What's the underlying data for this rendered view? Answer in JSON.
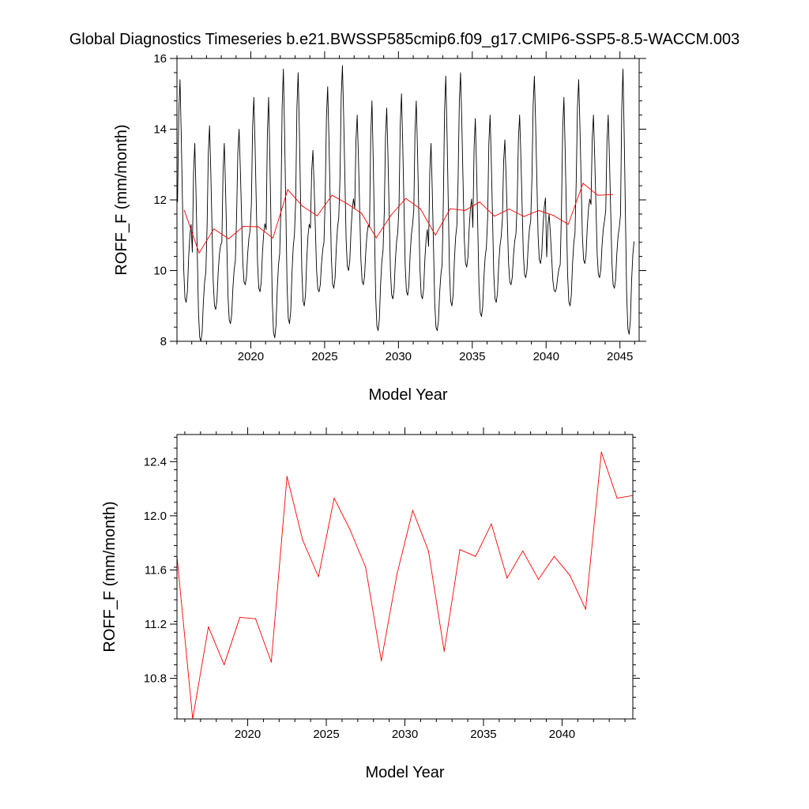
{
  "title": "Global Diagnostics Timeseries b.e21.BWSSP585cmip6.f09_g17.CMIP6-SSP5-8.5-WACCM.003",
  "chart_data": [
    {
      "type": "line",
      "xlabel": "Model Year",
      "ylabel": "ROFF_F (mm/month)",
      "xlim": [
        2015,
        2046.3
      ],
      "ylim": [
        8,
        16
      ],
      "xticks": [
        2020,
        2025,
        2030,
        2035,
        2040,
        2045
      ],
      "yticks": [
        8,
        10,
        12,
        14,
        16
      ],
      "grid": false,
      "series": [
        {
          "color": "#000000",
          "kind": "monthly",
          "x_start": 2015.04,
          "x_step": 0.08333,
          "annual_max": [
            15.4,
            13.6,
            14.1,
            13.6,
            14.0,
            14.9,
            14.9,
            15.7,
            15.6,
            13.4,
            15.2,
            15.8,
            14.4,
            14.8,
            14.6,
            15.0,
            14.8,
            13.6,
            15.5,
            15.6,
            14.3,
            14.4,
            13.7,
            14.4,
            15.5,
            11.6,
            14.9,
            15.4,
            14.4,
            14.4,
            15.7
          ],
          "annual_min": [
            9.1,
            8.0,
            8.9,
            8.5,
            9.6,
            9.4,
            8.1,
            8.5,
            9.0,
            9.4,
            9.5,
            10.0,
            9.6,
            8.3,
            9.2,
            9.3,
            9.2,
            8.3,
            9.0,
            10.1,
            8.7,
            9.1,
            9.6,
            9.8,
            10.2,
            9.4,
            9.0,
            10.2,
            9.8,
            9.5,
            8.2
          ]
        },
        {
          "color": "#ff0000",
          "kind": "annual",
          "x": [
            2015.5,
            2016.5,
            2017.5,
            2018.5,
            2019.5,
            2020.5,
            2021.5,
            2022.5,
            2023.5,
            2024.5,
            2025.5,
            2026.5,
            2027.5,
            2028.5,
            2029.5,
            2030.5,
            2031.5,
            2032.5,
            2033.5,
            2034.5,
            2035.5,
            2036.5,
            2037.5,
            2038.5,
            2039.5,
            2040.5,
            2041.5,
            2042.5,
            2043.5,
            2044.5
          ],
          "values": [
            11.7,
            10.5,
            11.18,
            10.9,
            11.25,
            11.24,
            10.92,
            12.29,
            11.82,
            11.55,
            12.13,
            11.9,
            11.62,
            10.93,
            11.57,
            12.04,
            11.74,
            11.0,
            11.75,
            11.7,
            11.94,
            11.54,
            11.74,
            11.53,
            11.7,
            11.56,
            11.31,
            12.47,
            12.13,
            12.15
          ]
        }
      ]
    },
    {
      "type": "line",
      "xlabel": "Model Year",
      "ylabel": "ROFF_F (mm/month)",
      "xlim": [
        2015.5,
        2044.5
      ],
      "ylim": [
        10.5,
        12.6
      ],
      "xticks": [
        2020,
        2025,
        2030,
        2035,
        2040
      ],
      "yticks": [
        10.8,
        11.2,
        11.6,
        12.0,
        12.4
      ],
      "ytick_labels": [
        "10.8",
        "11.2",
        "11.6",
        "12.0",
        "12.4"
      ],
      "grid": false,
      "series": [
        {
          "color": "#ff0000",
          "kind": "annual",
          "x": [
            2015.5,
            2016.5,
            2017.5,
            2018.5,
            2019.5,
            2020.5,
            2021.5,
            2022.5,
            2023.5,
            2024.5,
            2025.5,
            2026.5,
            2027.5,
            2028.5,
            2029.5,
            2030.5,
            2031.5,
            2032.5,
            2033.5,
            2034.5,
            2035.5,
            2036.5,
            2037.5,
            2038.5,
            2039.5,
            2040.5,
            2041.5,
            2042.5,
            2043.5,
            2044.5
          ],
          "values": [
            11.7,
            10.5,
            11.18,
            10.9,
            11.25,
            11.24,
            10.92,
            12.29,
            11.82,
            11.55,
            12.13,
            11.9,
            11.62,
            10.93,
            11.57,
            12.04,
            11.74,
            11.0,
            11.75,
            11.7,
            11.94,
            11.54,
            11.74,
            11.53,
            11.7,
            11.56,
            11.31,
            12.47,
            12.13,
            12.15
          ]
        }
      ]
    }
  ]
}
